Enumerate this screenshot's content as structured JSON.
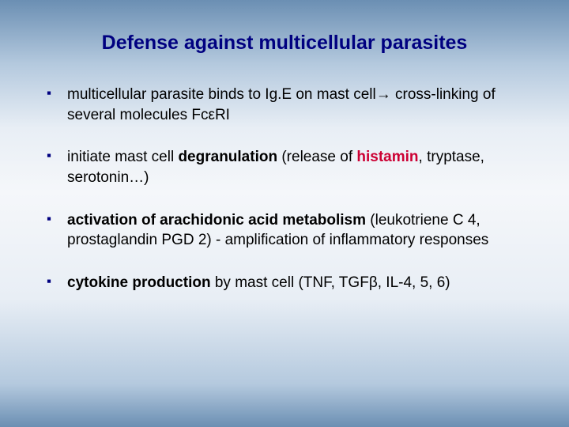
{
  "title": "Defense against multicellular parasites",
  "bullets": {
    "b1_part1": "multicellular parasite binds to Ig.E on mast cell→ cross-linking of several molecules Fc",
    "b1_epsilon": "ε",
    "b1_part2": "RI",
    "b2_part1": "initiate mast cell ",
    "b2_bold1": "degranulation",
    "b2_part2": " (release of ",
    "b2_highlight": "histamin",
    "b2_part3": ", tryptase, serotonin…)",
    "b3_bold1": "activation of arachidonic acid metabolism",
    "b3_part1": " (leukotriene C 4, prostaglandin PGD 2) - amplification of inflammatory responses",
    "b4_bold1": "cytokine production",
    "b4_part1": " by mast cell (TNF, TGF",
    "b4_beta": "β",
    "b4_part2": ", IL-4, 5, 6)"
  },
  "styling": {
    "title_color": "#000080",
    "title_fontsize": 25,
    "body_fontsize": 19,
    "bullet_color": "#000080",
    "highlight_color": "#cc0033",
    "background_gradient": [
      "#6b8fb3",
      "#b4c9de",
      "#e8eef5",
      "#f5f7fa",
      "#e8eef5",
      "#b4c9de",
      "#6b8fb3"
    ],
    "font_family": "Verdana"
  }
}
